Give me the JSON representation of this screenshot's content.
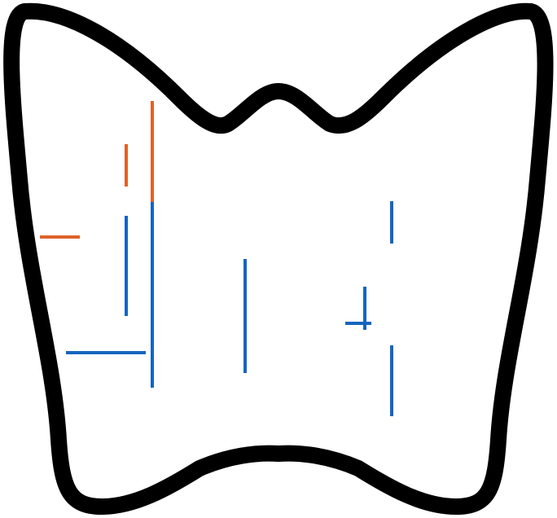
{
  "colors": {
    "background": "#ffffff",
    "outline": "#000000",
    "orange": "#e0622a",
    "blue": "#1565c0"
  }
}
